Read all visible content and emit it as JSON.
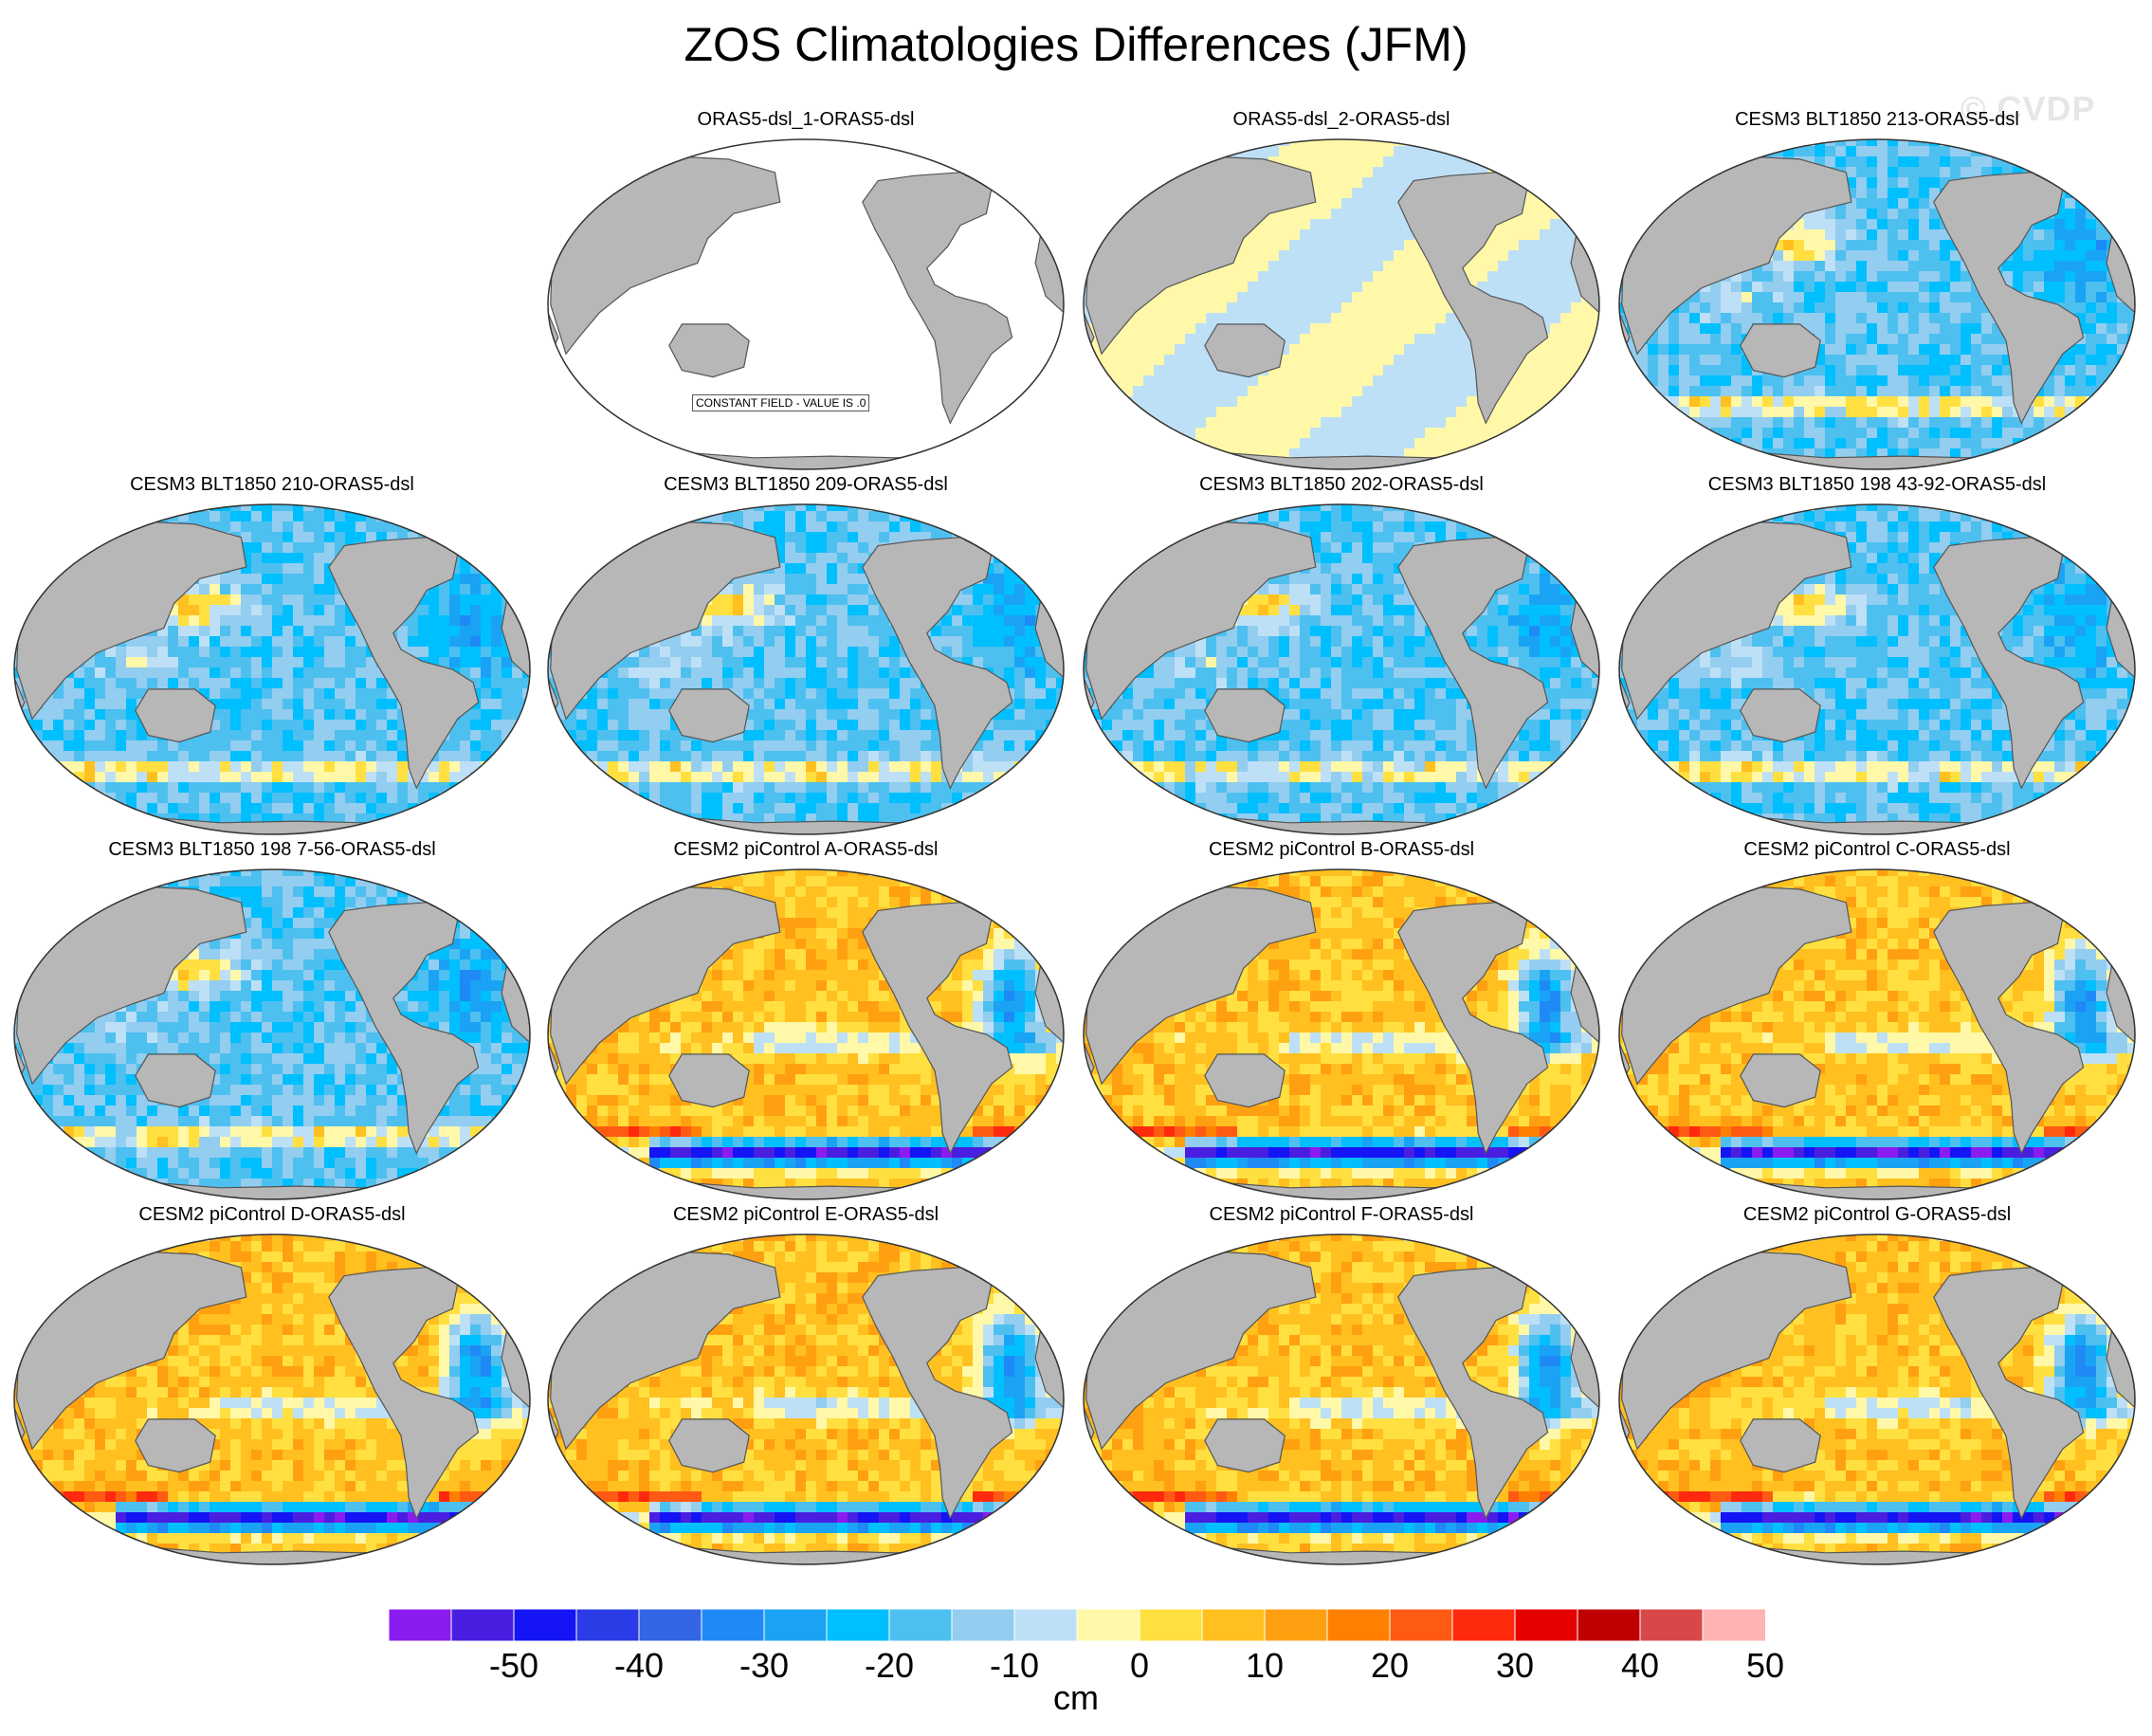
{
  "title": "ZOS Climatologies Differences (JFM)",
  "watermark": "© CVDP",
  "constant_label": "CONSTANT FIELD - VALUE IS .0",
  "colorbar": {
    "units": "cm",
    "tick_labels": [
      "-50",
      "-40",
      "-30",
      "-20",
      "-10",
      "0",
      "10",
      "20",
      "30",
      "40",
      "50"
    ],
    "colors": [
      "#8b1cf0",
      "#4a1ee0",
      "#1414f5",
      "#2a3ce6",
      "#3266e6",
      "#1f8af5",
      "#1aa3f5",
      "#00bfff",
      "#4dc0f0",
      "#93cdef",
      "#bde0f7",
      "#fff8a8",
      "#ffe040",
      "#ffc020",
      "#ffa010",
      "#ff8000",
      "#ff5a14",
      "#ff2a0e",
      "#e60000",
      "#c00000",
      "#d94848",
      "#ffb3b3"
    ]
  },
  "panels": [
    {
      "title": "",
      "pattern": "blank"
    },
    {
      "title": "ORAS5-dsl_1-ORAS5-dsl",
      "pattern": "constant"
    },
    {
      "title": "ORAS5-dsl_2-ORAS5-dsl",
      "pattern": "nearzero"
    },
    {
      "title": "CESM3 BLT1850 213-ORAS5-dsl",
      "pattern": "cesm3"
    },
    {
      "title": "CESM3 BLT1850 210-ORAS5-dsl",
      "pattern": "cesm3"
    },
    {
      "title": "CESM3 BLT1850 209-ORAS5-dsl",
      "pattern": "cesm3"
    },
    {
      "title": "CESM3 BLT1850 202-ORAS5-dsl",
      "pattern": "cesm3"
    },
    {
      "title": "CESM3 BLT1850 198 43-92-ORAS5-dsl",
      "pattern": "cesm3"
    },
    {
      "title": "CESM3 BLT1850 198 7-56-ORAS5-dsl",
      "pattern": "cesm3"
    },
    {
      "title": "CESM2 piControl A-ORAS5-dsl",
      "pattern": "cesm2"
    },
    {
      "title": "CESM2 piControl B-ORAS5-dsl",
      "pattern": "cesm2"
    },
    {
      "title": "CESM2 piControl C-ORAS5-dsl",
      "pattern": "cesm2"
    },
    {
      "title": "CESM2 piControl D-ORAS5-dsl",
      "pattern": "cesm2"
    },
    {
      "title": "CESM2 piControl E-ORAS5-dsl",
      "pattern": "cesm2"
    },
    {
      "title": "CESM2 piControl F-ORAS5-dsl",
      "pattern": "cesm2"
    },
    {
      "title": "CESM2 piControl G-ORAS5-dsl",
      "pattern": "cesm2"
    }
  ]
}
